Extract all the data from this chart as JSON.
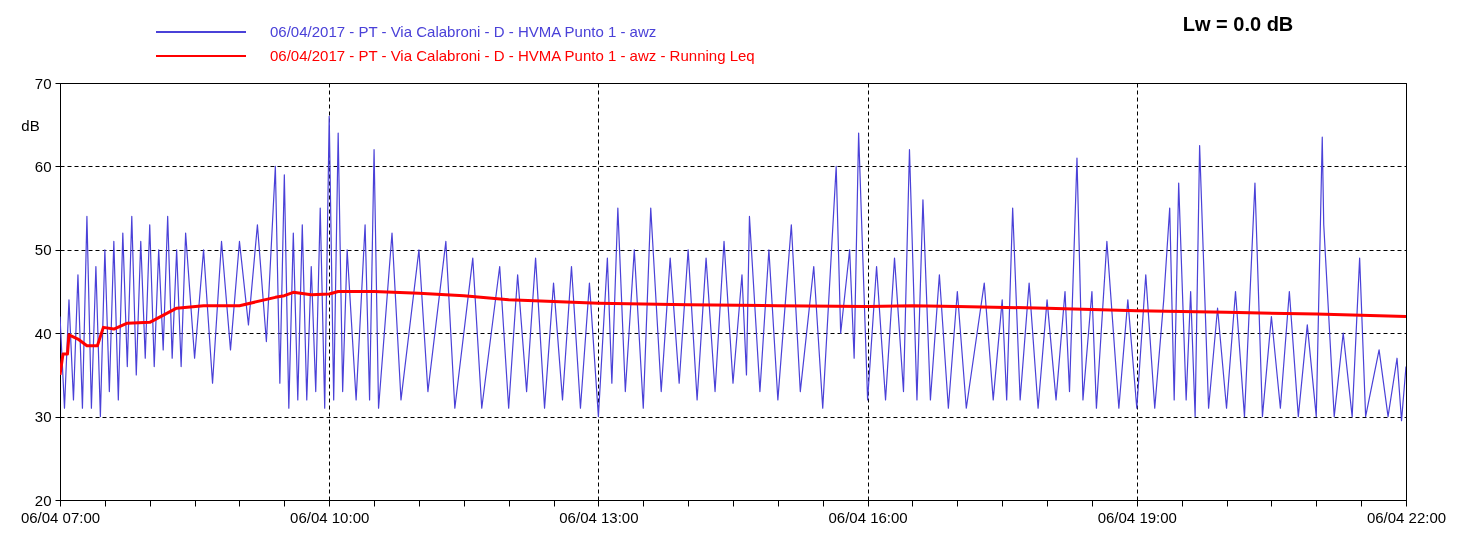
{
  "chart_data": {
    "type": "line",
    "ylabel": "dB",
    "annotations": [
      "Lw = 0.0 dB"
    ],
    "legend": "top left",
    "grid": true,
    "xlim": [
      "2017-04-06T07:00",
      "2017-04-06T22:00"
    ],
    "ylim": [
      20,
      70
    ],
    "yticks": [
      20,
      30,
      40,
      50,
      60,
      70
    ],
    "xticks": [
      {
        "value": "2017-04-06T07:00",
        "label": "06/04 07:00"
      },
      {
        "value": "2017-04-06T07:30",
        "label": null
      },
      {
        "value": "2017-04-06T08:00",
        "label": null
      },
      {
        "value": "2017-04-06T08:30",
        "label": null
      },
      {
        "value": "2017-04-06T09:00",
        "label": null
      },
      {
        "value": "2017-04-06T09:30",
        "label": null
      },
      {
        "value": "2017-04-06T10:00",
        "label": "06/04 10:00"
      },
      {
        "value": "2017-04-06T10:30",
        "label": null
      },
      {
        "value": "2017-04-06T11:00",
        "label": null
      },
      {
        "value": "2017-04-06T11:30",
        "label": null
      },
      {
        "value": "2017-04-06T12:00",
        "label": null
      },
      {
        "value": "2017-04-06T12:30",
        "label": null
      },
      {
        "value": "2017-04-06T13:00",
        "label": "06/04 13:00"
      },
      {
        "value": "2017-04-06T13:30",
        "label": null
      },
      {
        "value": "2017-04-06T14:00",
        "label": null
      },
      {
        "value": "2017-04-06T14:30",
        "label": null
      },
      {
        "value": "2017-04-06T15:00",
        "label": null
      },
      {
        "value": "2017-04-06T15:30",
        "label": null
      },
      {
        "value": "2017-04-06T16:00",
        "label": "06/04 16:00"
      },
      {
        "value": "2017-04-06T16:30",
        "label": null
      },
      {
        "value": "2017-04-06T17:00",
        "label": null
      },
      {
        "value": "2017-04-06T17:30",
        "label": null
      },
      {
        "value": "2017-04-06T18:00",
        "label": null
      },
      {
        "value": "2017-04-06T18:30",
        "label": null
      },
      {
        "value": "2017-04-06T19:00",
        "label": "06/04 19:00"
      },
      {
        "value": "2017-04-06T19:30",
        "label": null
      },
      {
        "value": "2017-04-06T20:00",
        "label": null
      },
      {
        "value": "2017-04-06T20:30",
        "label": null
      },
      {
        "value": "2017-04-06T21:00",
        "label": null
      },
      {
        "value": "2017-04-06T21:30",
        "label": null
      },
      {
        "value": "2017-04-06T22:00",
        "label": "06/04 22:00"
      }
    ],
    "series": [
      {
        "name": "06/04/2017 - PT - Via Calabroni - D - HVMA Punto 1 - awz",
        "color": "#4a41d8",
        "x": [
          "2017-04-06T07:00",
          "2017-04-06T07:03",
          "2017-04-06T07:06",
          "2017-04-06T07:09",
          "2017-04-06T07:12",
          "2017-04-06T07:15",
          "2017-04-06T07:18",
          "2017-04-06T07:21",
          "2017-04-06T07:24",
          "2017-04-06T07:27",
          "2017-04-06T07:30",
          "2017-04-06T07:33",
          "2017-04-06T07:36",
          "2017-04-06T07:39",
          "2017-04-06T07:42",
          "2017-04-06T07:45",
          "2017-04-06T07:48",
          "2017-04-06T07:51",
          "2017-04-06T07:54",
          "2017-04-06T07:57",
          "2017-04-06T08:00",
          "2017-04-06T08:03",
          "2017-04-06T08:06",
          "2017-04-06T08:09",
          "2017-04-06T08:12",
          "2017-04-06T08:15",
          "2017-04-06T08:18",
          "2017-04-06T08:21",
          "2017-04-06T08:24",
          "2017-04-06T08:30",
          "2017-04-06T08:36",
          "2017-04-06T08:42",
          "2017-04-06T08:48",
          "2017-04-06T08:54",
          "2017-04-06T09:00",
          "2017-04-06T09:06",
          "2017-04-06T09:12",
          "2017-04-06T09:18",
          "2017-04-06T09:24",
          "2017-04-06T09:27",
          "2017-04-06T09:30",
          "2017-04-06T09:33",
          "2017-04-06T09:36",
          "2017-04-06T09:39",
          "2017-04-06T09:42",
          "2017-04-06T09:45",
          "2017-04-06T09:48",
          "2017-04-06T09:51",
          "2017-04-06T09:54",
          "2017-04-06T09:57",
          "2017-04-06T10:00",
          "2017-04-06T10:03",
          "2017-04-06T10:06",
          "2017-04-06T10:09",
          "2017-04-06T10:12",
          "2017-04-06T10:18",
          "2017-04-06T10:24",
          "2017-04-06T10:27",
          "2017-04-06T10:30",
          "2017-04-06T10:33",
          "2017-04-06T10:42",
          "2017-04-06T10:48",
          "2017-04-06T11:00",
          "2017-04-06T11:06",
          "2017-04-06T11:18",
          "2017-04-06T11:24",
          "2017-04-06T11:36",
          "2017-04-06T11:42",
          "2017-04-06T11:54",
          "2017-04-06T12:00",
          "2017-04-06T12:06",
          "2017-04-06T12:12",
          "2017-04-06T12:18",
          "2017-04-06T12:24",
          "2017-04-06T12:30",
          "2017-04-06T12:36",
          "2017-04-06T12:42",
          "2017-04-06T12:48",
          "2017-04-06T12:54",
          "2017-04-06T13:00",
          "2017-04-06T13:06",
          "2017-04-06T13:09",
          "2017-04-06T13:13",
          "2017-04-06T13:18",
          "2017-04-06T13:24",
          "2017-04-06T13:30",
          "2017-04-06T13:35",
          "2017-04-06T13:42",
          "2017-04-06T13:48",
          "2017-04-06T13:54",
          "2017-04-06T14:00",
          "2017-04-06T14:06",
          "2017-04-06T14:12",
          "2017-04-06T14:18",
          "2017-04-06T14:24",
          "2017-04-06T14:30",
          "2017-04-06T14:36",
          "2017-04-06T14:39",
          "2017-04-06T14:41",
          "2017-04-06T14:48",
          "2017-04-06T14:54",
          "2017-04-06T15:00",
          "2017-04-06T15:09",
          "2017-04-06T15:15",
          "2017-04-06T15:24",
          "2017-04-06T15:30",
          "2017-04-06T15:39",
          "2017-04-06T15:42",
          "2017-04-06T15:48",
          "2017-04-06T15:51",
          "2017-04-06T15:54",
          "2017-04-06T16:00",
          "2017-04-06T16:06",
          "2017-04-06T16:12",
          "2017-04-06T16:18",
          "2017-04-06T16:24",
          "2017-04-06T16:28",
          "2017-04-06T16:33",
          "2017-04-06T16:37",
          "2017-04-06T16:42",
          "2017-04-06T16:48",
          "2017-04-06T16:54",
          "2017-04-06T17:00",
          "2017-04-06T17:06",
          "2017-04-06T17:18",
          "2017-04-06T17:24",
          "2017-04-06T17:30",
          "2017-04-06T17:33",
          "2017-04-06T17:37",
          "2017-04-06T17:42",
          "2017-04-06T17:48",
          "2017-04-06T17:54",
          "2017-04-06T18:00",
          "2017-04-06T18:06",
          "2017-04-06T18:12",
          "2017-04-06T18:15",
          "2017-04-06T18:20",
          "2017-04-06T18:24",
          "2017-04-06T18:30",
          "2017-04-06T18:33",
          "2017-04-06T18:40",
          "2017-04-06T18:48",
          "2017-04-06T18:54",
          "2017-04-06T19:00",
          "2017-04-06T19:06",
          "2017-04-06T19:12",
          "2017-04-06T19:18",
          "2017-04-06T19:22",
          "2017-04-06T19:25",
          "2017-04-06T19:28",
          "2017-04-06T19:33",
          "2017-04-06T19:36",
          "2017-04-06T19:39",
          "2017-04-06T19:42",
          "2017-04-06T19:48",
          "2017-04-06T19:54",
          "2017-04-06T20:00",
          "2017-04-06T20:06",
          "2017-04-06T20:12",
          "2017-04-06T20:19",
          "2017-04-06T20:24",
          "2017-04-06T20:30",
          "2017-04-06T20:36",
          "2017-04-06T20:42",
          "2017-04-06T20:48",
          "2017-04-06T20:54",
          "2017-04-06T21:00",
          "2017-04-06T21:04",
          "2017-04-06T21:05",
          "2017-04-06T21:12",
          "2017-04-06T21:18",
          "2017-04-06T21:24",
          "2017-04-06T21:29",
          "2017-04-06T21:33",
          "2017-04-06T21:42",
          "2017-04-06T21:48",
          "2017-04-06T21:54",
          "2017-04-06T21:57",
          "2017-04-06T22:00"
        ],
        "values": [
          42,
          31,
          44,
          32,
          47,
          31,
          54,
          31,
          48,
          30,
          50,
          33,
          51,
          32,
          52,
          36,
          54,
          35,
          51,
          37,
          53,
          36,
          50,
          38,
          54,
          37,
          50,
          36,
          52,
          37,
          50,
          34,
          51,
          38,
          51,
          41,
          53,
          39,
          60,
          34,
          59,
          31,
          52,
          32,
          53,
          32,
          48,
          33,
          55,
          31,
          66,
          32,
          64,
          33,
          50,
          32,
          53,
          32,
          62,
          31,
          52,
          32,
          50,
          33,
          51,
          31,
          49,
          31,
          48,
          31,
          47,
          33,
          49,
          31,
          46,
          32,
          48,
          31,
          46,
          30,
          49,
          34,
          55,
          33,
          50,
          31,
          55,
          33,
          49,
          34,
          50,
          32,
          49,
          33,
          51,
          34,
          47,
          35,
          54,
          33,
          50,
          32,
          53,
          33,
          48,
          31,
          60,
          40,
          50,
          37,
          64,
          32,
          48,
          32,
          49,
          33,
          62,
          32,
          56,
          32,
          47,
          31,
          45,
          31,
          46,
          32,
          44,
          32,
          55,
          32,
          46,
          31,
          44,
          32,
          45,
          33,
          61,
          32,
          45,
          31,
          51,
          31,
          44,
          31,
          47,
          31,
          44,
          55,
          32,
          58,
          32,
          45,
          30,
          62.5,
          31,
          43,
          31,
          45,
          30,
          58,
          30,
          42,
          31,
          45,
          30,
          41,
          30,
          63.5,
          53,
          30,
          40,
          30,
          49,
          30,
          38,
          30,
          37,
          29.5,
          36
        ]
      },
      {
        "name": "06/04/2017 - PT - Via Calabroni - D - HVMA Punto 1 - awz - Running Leq",
        "color": "#ff0000",
        "x": [
          "2017-04-06T07:00",
          "2017-04-06T07:02",
          "2017-04-06T07:05",
          "2017-04-06T07:06",
          "2017-04-06T07:12",
          "2017-04-06T07:18",
          "2017-04-06T07:25",
          "2017-04-06T07:29",
          "2017-04-06T07:36",
          "2017-04-06T07:45",
          "2017-04-06T08:00",
          "2017-04-06T08:18",
          "2017-04-06T08:36",
          "2017-04-06T09:00",
          "2017-04-06T09:24",
          "2017-04-06T09:30",
          "2017-04-06T09:36",
          "2017-04-06T09:48",
          "2017-04-06T10:00",
          "2017-04-06T10:06",
          "2017-04-06T10:30",
          "2017-04-06T11:00",
          "2017-04-06T11:30",
          "2017-04-06T12:00",
          "2017-04-06T12:30",
          "2017-04-06T13:00",
          "2017-04-06T14:00",
          "2017-04-06T15:00",
          "2017-04-06T16:00",
          "2017-04-06T16:30",
          "2017-04-06T17:00",
          "2017-04-06T18:00",
          "2017-04-06T19:00",
          "2017-04-06T20:00",
          "2017-04-06T21:00",
          "2017-04-06T22:00"
        ],
        "values": [
          35,
          37.5,
          37.5,
          39.8,
          39.3,
          38.5,
          38.5,
          40.7,
          40.5,
          41.2,
          41.3,
          43,
          43.3,
          43.3,
          44.3,
          44.5,
          44.9,
          44.6,
          44.7,
          45,
          45,
          44.8,
          44.5,
          44,
          43.8,
          43.6,
          43.4,
          43.3,
          43.2,
          43.3,
          43.2,
          43,
          42.7,
          42.5,
          42.3,
          42
        ]
      }
    ]
  }
}
